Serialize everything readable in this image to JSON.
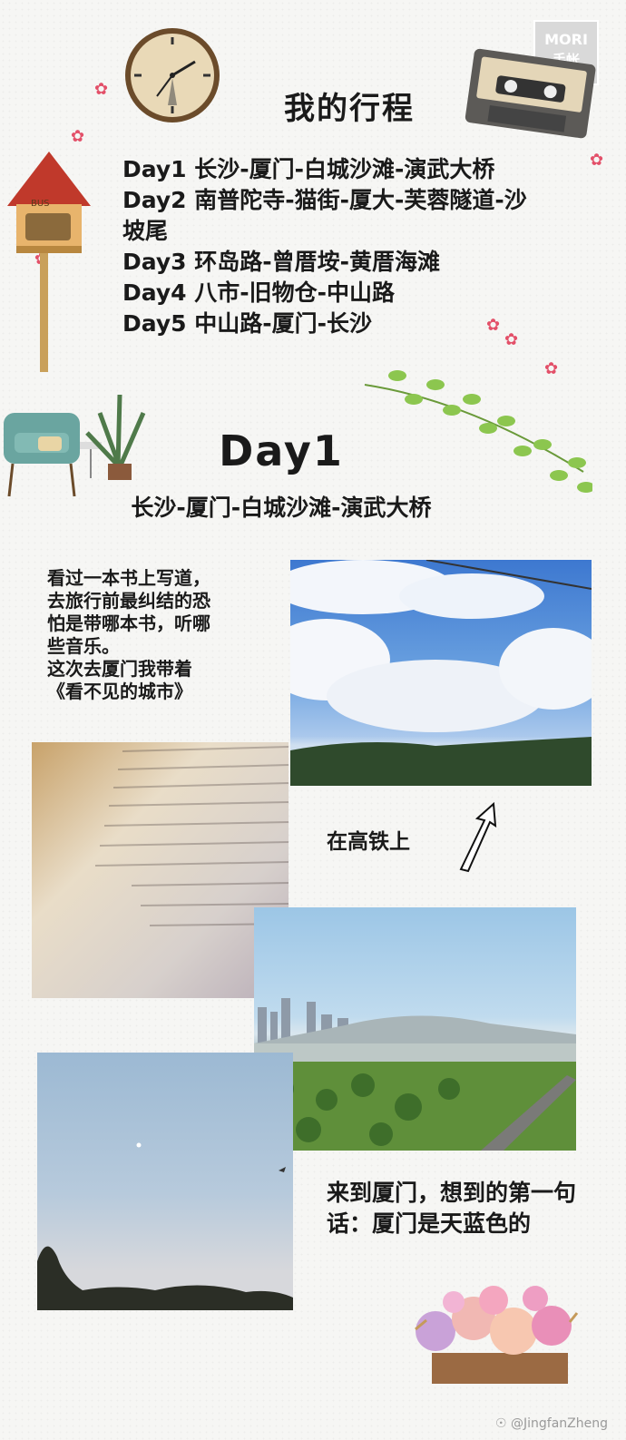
{
  "logo": {
    "line1": "MORI",
    "line2": "手帐"
  },
  "title": "我的行程",
  "itinerary": [
    "Day1 长沙-厦门-白城沙滩-演武大桥",
    "Day2 南普陀寺-猫街-厦大-芙蓉隧道-沙坡尾",
    "Day3 环岛路-曾厝垵-黄厝海滩",
    "Day4 八市-旧物仓-中山路",
    "Day5 中山路-厦门-长沙"
  ],
  "day_heading": "Day1",
  "day_route": "长沙-厦门-白城沙滩-演武大桥",
  "note_book": {
    "line1": "看过一本书上写道，",
    "line2": "去旅行前最纠结的恐",
    "line3": "怕是带哪本书，听哪",
    "line4": "些音乐。",
    "line5": "这次去厦门我带着",
    "line6": "《看不见的城市》"
  },
  "note_train": "在高铁上",
  "note_xiamen": "来到厦门，想到的第一句话：厦门是天蓝色的",
  "watermark": "@JingfanZheng",
  "colors": {
    "accent_flower": "#e35069",
    "sky": "#5b8fd6",
    "leaf": "#8cc64f"
  },
  "icons": [
    "clock-icon",
    "cassette-icon",
    "birdhouse-bus-icon",
    "armchair-plant-icon",
    "leaf-vine-icon",
    "arrow-up-icon",
    "flower-bouquet-icon",
    "weibo-icon"
  ]
}
